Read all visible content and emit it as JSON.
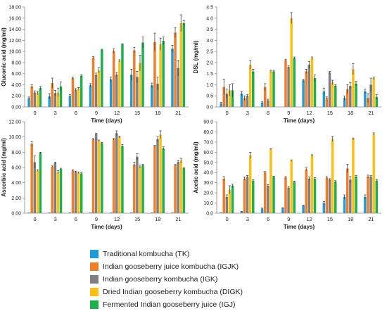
{
  "series_names": [
    "Traditional kombucha (TK)",
    "Indian gooseberry juice kombucha (IGJK)",
    "Indian gooseberry kombucha (IGK)",
    "Dried Indian gooseberry kombucha (DIGK)",
    "Fermented Indian gooseberry juice (IGJ)"
  ],
  "colors": [
    "#1f9bd7",
    "#f07d2a",
    "#7f7f7f",
    "#fbbf16",
    "#1db04b"
  ],
  "chart_data": [
    {
      "type": "bar",
      "ylabel": "Gluconic acid (mg/ml)",
      "xlabel": "Time (days)",
      "categories": [
        "0",
        "3",
        "6",
        "9",
        "12",
        "15",
        "18",
        "21"
      ],
      "ylim": [
        0,
        18
      ],
      "yticks": [
        "0.00",
        "2.00",
        "4.00",
        "6.00",
        "8.00",
        "10.00",
        "12.00",
        "14.00",
        "16.00",
        "18.00"
      ],
      "series": [
        {
          "values": [
            1.6,
            1.9,
            2.0,
            3.9,
            5.0,
            5.8,
            3.9,
            10.5
          ],
          "errors": [
            0.2,
            0.5,
            0.2,
            0.3,
            0.4,
            1.0,
            0.4,
            0.6
          ]
        },
        {
          "values": [
            3.7,
            4.3,
            5.2,
            8.9,
            10.1,
            10.2,
            11.7,
            13.4
          ],
          "errors": [
            0.3,
            0.9,
            0.2,
            0.2,
            0.4,
            0.5,
            1.6,
            0.9
          ]
        },
        {
          "values": [
            2.6,
            2.5,
            3.1,
            5.8,
            5.8,
            5.4,
            4.2,
            7.0
          ],
          "errors": [
            0.3,
            0.5,
            0.2,
            0.3,
            0.4,
            1.0,
            1.2,
            1.4
          ]
        },
        {
          "values": [
            2.5,
            2.6,
            3.3,
            6.6,
            8.3,
            7.9,
            11.3,
            15.1
          ],
          "errors": [
            0.3,
            0.8,
            0.2,
            0.5,
            0.2,
            1.4,
            1.1,
            1.5
          ]
        },
        {
          "values": [
            3.4,
            3.7,
            5.6,
            10.3,
            11.3,
            11.6,
            11.9,
            15.1
          ],
          "errors": [
            0.3,
            0.8,
            0.2,
            0.1,
            0.1,
            1.0,
            0.7,
            0.4
          ]
        }
      ]
    },
    {
      "type": "bar",
      "ylabel": "DSL (mg/ml)",
      "xlabel": "Time (days)",
      "categories": [
        "0",
        "3",
        "6",
        "9",
        "12",
        "15",
        "18",
        "21"
      ],
      "ylim": [
        0,
        4.5
      ],
      "yticks": [
        "0.0",
        "0.5",
        "1.0",
        "1.5",
        "2.0",
        "2.5",
        "3.0",
        "3.5",
        "4.0",
        "4.5"
      ],
      "series": [
        {
          "values": [
            0.15,
            0.6,
            0.2,
            0.0,
            1.2,
            0.7,
            0.4,
            0.7
          ],
          "errors": [
            0.05,
            0.1,
            0.05,
            0.0,
            0.05,
            0.15,
            0.1,
            0.1
          ]
        },
        {
          "values": [
            0.9,
            0.4,
            0.9,
            2.1,
            1.6,
            0.4,
            0.8,
            0.4
          ],
          "errors": [
            0.35,
            0.1,
            0.15,
            0.05,
            0.1,
            0.05,
            0.2,
            0.2
          ]
        },
        {
          "values": [
            0.6,
            0.5,
            0.3,
            1.8,
            1.9,
            1.55,
            0.95,
            1.0
          ],
          "errors": [
            0.2,
            0.05,
            0.05,
            0.05,
            0.15,
            0.05,
            0.15,
            0.3
          ]
        },
        {
          "values": [
            0.75,
            1.9,
            1.6,
            4.0,
            2.2,
            1.1,
            1.7,
            1.3
          ],
          "errors": [
            0.25,
            0.2,
            0.05,
            0.25,
            0.05,
            0.1,
            0.25,
            0.05
          ]
        },
        {
          "values": [
            0.75,
            1.6,
            1.6,
            2.2,
            1.3,
            0.95,
            1.05,
            0.45
          ],
          "errors": [
            0.3,
            0.1,
            0.05,
            0.05,
            0.15,
            0.05,
            0.1,
            0.1
          ]
        }
      ]
    },
    {
      "type": "bar",
      "ylabel": "Ascorbic acid (mg/ml)",
      "xlabel": "Time (days)",
      "categories": [
        "0",
        "3",
        "6",
        "9",
        "12",
        "15",
        "18",
        "21"
      ],
      "ylim": [
        0,
        12
      ],
      "yticks": [
        "0.00",
        "2.00",
        "4.00",
        "6.00",
        "8.00",
        "10.00",
        "12.00"
      ],
      "series": [
        {
          "values": [
            0.1,
            0.1,
            0.1,
            0.1,
            0.1,
            0.1,
            0.1,
            0.1
          ],
          "errors": [
            0,
            0,
            0,
            0,
            0,
            0,
            0,
            0
          ]
        },
        {
          "values": [
            9.1,
            6.1,
            5.6,
            9.7,
            9.7,
            6.4,
            8.8,
            6.3
          ],
          "errors": [
            0.3,
            0.1,
            0.1,
            0.1,
            0.1,
            0.3,
            0.1,
            0.1
          ]
        },
        {
          "values": [
            6.7,
            6.6,
            5.4,
            10.4,
            10.5,
            7.4,
            9.7,
            6.7
          ],
          "errors": [
            0.8,
            0.1,
            0.1,
            0.1,
            0.3,
            0.4,
            0.3,
            0.2
          ]
        },
        {
          "values": [
            5.6,
            5.4,
            5.3,
            9.5,
            10.0,
            6.1,
            10.3,
            6.9
          ],
          "errors": [
            0.1,
            0.2,
            0.1,
            0.1,
            0.1,
            0.2,
            0.5,
            0.3
          ]
        },
        {
          "values": [
            7.9,
            5.8,
            5.2,
            9.2,
            8.8,
            6.3,
            8.5,
            5.9
          ],
          "errors": [
            0.1,
            0.1,
            0.1,
            0.1,
            0.2,
            0.1,
            0.2,
            0.1
          ]
        }
      ]
    },
    {
      "type": "bar",
      "ylabel": "Acetic acid (mg/ml)",
      "xlabel": "Time (days)",
      "categories": [
        "0",
        "3",
        "6",
        "9",
        "12",
        "15",
        "18",
        "21"
      ],
      "ylim": [
        0,
        90
      ],
      "yticks": [
        "0.0",
        "10.0",
        "20.0",
        "30.0",
        "40.0",
        "50.0",
        "60.0",
        "70.0",
        "80.0",
        "90.0"
      ],
      "series": [
        {
          "values": [
            0.3,
            1.5,
            4.5,
            5.0,
            7.5,
            10.0,
            16.0,
            16.0
          ],
          "errors": [
            0.1,
            0.2,
            0.5,
            0.5,
            0.5,
            1.5,
            2.0,
            2.0
          ]
        },
        {
          "values": [
            34.0,
            34.0,
            40.0,
            35.0,
            43.0,
            35.0,
            44.0,
            36.0
          ],
          "errors": [
            2.0,
            1.5,
            1.0,
            1.0,
            1.5,
            1.0,
            4.0,
            1.5
          ]
        },
        {
          "values": [
            16.0,
            36.0,
            27.0,
            25.0,
            34.0,
            33.0,
            33.0,
            36.0
          ],
          "errors": [
            2.0,
            1.0,
            1.0,
            1.0,
            1.5,
            1.0,
            3.0,
            1.0
          ]
        },
        {
          "values": [
            23.0,
            57.0,
            63.0,
            52.0,
            57.0,
            73.0,
            73.0,
            78.0
          ],
          "errors": [
            4.0,
            3.0,
            0.5,
            0.5,
            0.5,
            2.5,
            1.0,
            1.0
          ]
        },
        {
          "values": [
            27.0,
            32.0,
            36.0,
            31.0,
            34.0,
            31.0,
            36.0,
            32.0
          ],
          "errors": [
            1.5,
            1.0,
            0.5,
            0.5,
            1.0,
            1.0,
            1.0,
            1.0
          ]
        }
      ]
    }
  ]
}
